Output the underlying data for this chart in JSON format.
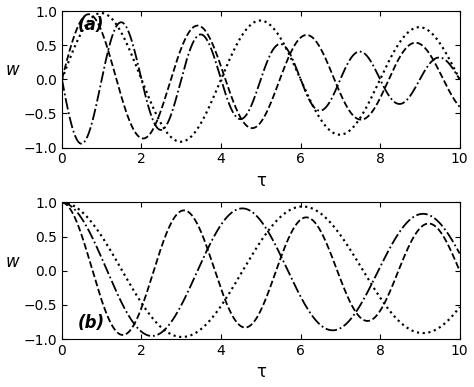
{
  "figsize": [
    4.74,
    3.87
  ],
  "dpi": 100,
  "background_color": "#ffffff",
  "tau_min": 0,
  "tau_max": 10,
  "ylim": [
    -1,
    1
  ],
  "yticks": [
    -1,
    -0.5,
    0,
    0.5,
    1
  ],
  "xticks": [
    0,
    2,
    4,
    6,
    8,
    10
  ],
  "ylabel": "w",
  "xlabel": "τ",
  "panel_a_label": "(a)",
  "panel_b_label": "(b)",
  "line_color": "#000000"
}
